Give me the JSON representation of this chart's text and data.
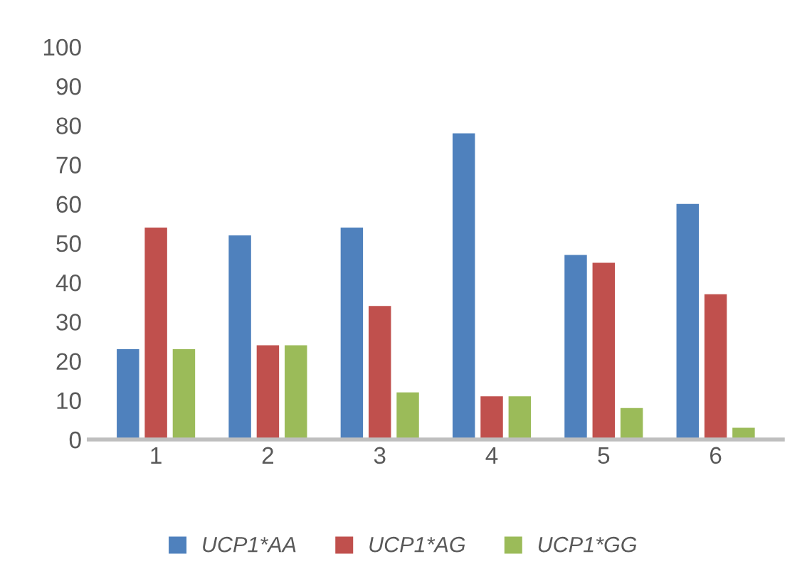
{
  "chart_data": {
    "type": "bar",
    "categories": [
      "1",
      "2",
      "3",
      "4",
      "5",
      "6"
    ],
    "series": [
      {
        "name": "UCP1*AA",
        "color": "#4f81bd",
        "values": [
          23,
          52,
          54,
          78,
          47,
          60
        ]
      },
      {
        "name": "UCP1*AG",
        "color": "#c0504d",
        "values": [
          54,
          24,
          34,
          11,
          45,
          37
        ]
      },
      {
        "name": "UCP1*GG",
        "color": "#9bbb59",
        "values": [
          23,
          24,
          12,
          11,
          8,
          3
        ]
      }
    ],
    "ylim": [
      0,
      100
    ],
    "yticks": [
      0,
      10,
      20,
      30,
      40,
      50,
      60,
      70,
      80,
      90,
      100
    ],
    "grid": false,
    "legend": "bottom"
  }
}
